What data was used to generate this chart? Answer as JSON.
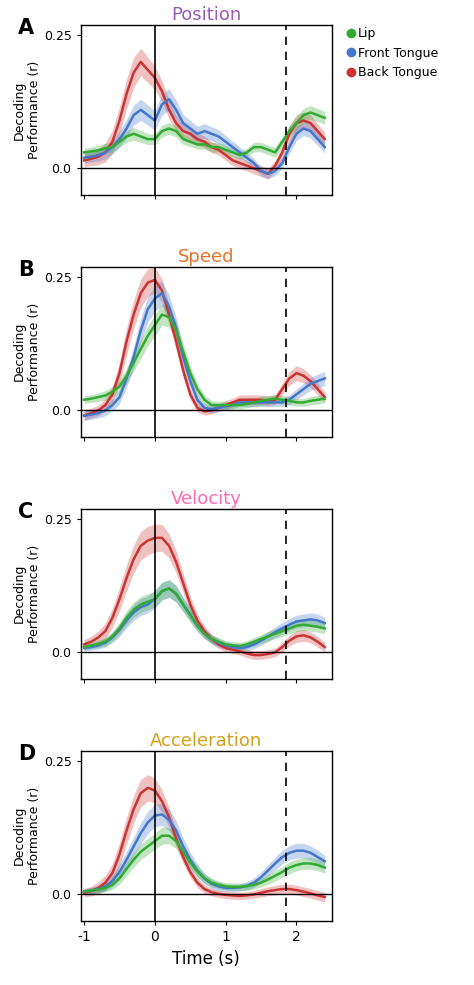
{
  "titles": [
    "Position",
    "Speed",
    "Velocity",
    "Acceleration"
  ],
  "title_colors": [
    "#9b59b6",
    "#e8722a",
    "#ff69b4",
    "#d4a017"
  ],
  "panel_labels": [
    "A",
    "B",
    "C",
    "D"
  ],
  "colors": {
    "lip": "#33aa33",
    "front_tongue": "#4477cc",
    "back_tongue": "#cc3333"
  },
  "legend_labels": [
    "Lip",
    "Front Tongue",
    "Back Tongue"
  ],
  "ylim": [
    -0.05,
    0.27
  ],
  "yticks": [
    0.0,
    0.25
  ],
  "xlim": [
    -1.05,
    2.5
  ],
  "xticks": [
    -1,
    0,
    1,
    2
  ],
  "xticklabels": [
    "-1",
    "0",
    "1",
    "2"
  ],
  "xlabel": "Time (s)",
  "ylabel": "Decoding\nPerformance (r)",
  "vline_solid": 0.0,
  "vline_dashed": 1.85,
  "hline": 0.0,
  "panels": {
    "A": {
      "t": [
        -1.0,
        -0.9,
        -0.8,
        -0.7,
        -0.6,
        -0.5,
        -0.4,
        -0.3,
        -0.2,
        -0.1,
        0.0,
        0.1,
        0.2,
        0.3,
        0.4,
        0.5,
        0.6,
        0.7,
        0.8,
        0.9,
        1.0,
        1.1,
        1.2,
        1.3,
        1.4,
        1.5,
        1.6,
        1.7,
        1.8,
        1.9,
        2.0,
        2.1,
        2.2,
        2.3,
        2.4
      ],
      "lip_mean": [
        0.03,
        0.032,
        0.034,
        0.038,
        0.04,
        0.05,
        0.06,
        0.065,
        0.06,
        0.055,
        0.055,
        0.07,
        0.075,
        0.07,
        0.055,
        0.05,
        0.045,
        0.045,
        0.04,
        0.04,
        0.035,
        0.03,
        0.025,
        0.03,
        0.04,
        0.04,
        0.035,
        0.03,
        0.05,
        0.07,
        0.085,
        0.1,
        0.105,
        0.1,
        0.095
      ],
      "lip_sem": [
        0.008,
        0.008,
        0.009,
        0.009,
        0.01,
        0.01,
        0.011,
        0.012,
        0.011,
        0.01,
        0.01,
        0.011,
        0.011,
        0.011,
        0.01,
        0.009,
        0.009,
        0.009,
        0.009,
        0.009,
        0.008,
        0.008,
        0.008,
        0.008,
        0.009,
        0.009,
        0.009,
        0.009,
        0.01,
        0.011,
        0.012,
        0.013,
        0.013,
        0.012,
        0.012
      ],
      "front_mean": [
        0.02,
        0.022,
        0.025,
        0.03,
        0.04,
        0.055,
        0.075,
        0.1,
        0.11,
        0.1,
        0.09,
        0.12,
        0.13,
        0.11,
        0.085,
        0.075,
        0.065,
        0.07,
        0.065,
        0.06,
        0.05,
        0.04,
        0.03,
        0.02,
        0.01,
        -0.005,
        -0.01,
        -0.005,
        0.01,
        0.04,
        0.065,
        0.075,
        0.07,
        0.055,
        0.04
      ],
      "front_sem": [
        0.01,
        0.01,
        0.011,
        0.012,
        0.013,
        0.015,
        0.017,
        0.019,
        0.02,
        0.019,
        0.018,
        0.02,
        0.02,
        0.018,
        0.016,
        0.015,
        0.014,
        0.014,
        0.013,
        0.013,
        0.012,
        0.011,
        0.01,
        0.009,
        0.009,
        0.009,
        0.009,
        0.009,
        0.01,
        0.012,
        0.013,
        0.013,
        0.013,
        0.012,
        0.011
      ],
      "back_mean": [
        0.015,
        0.018,
        0.022,
        0.03,
        0.05,
        0.09,
        0.14,
        0.18,
        0.2,
        0.185,
        0.17,
        0.145,
        0.11,
        0.085,
        0.07,
        0.065,
        0.055,
        0.05,
        0.04,
        0.035,
        0.025,
        0.015,
        0.01,
        0.005,
        0.0,
        -0.005,
        -0.01,
        0.005,
        0.03,
        0.065,
        0.085,
        0.09,
        0.085,
        0.07,
        0.055
      ],
      "back_sem": [
        0.012,
        0.013,
        0.015,
        0.018,
        0.022,
        0.026,
        0.028,
        0.028,
        0.026,
        0.024,
        0.022,
        0.02,
        0.017,
        0.015,
        0.013,
        0.012,
        0.011,
        0.011,
        0.01,
        0.01,
        0.01,
        0.01,
        0.01,
        0.01,
        0.01,
        0.01,
        0.01,
        0.01,
        0.012,
        0.015,
        0.016,
        0.016,
        0.015,
        0.014,
        0.013
      ]
    },
    "B": {
      "t": [
        -1.0,
        -0.9,
        -0.8,
        -0.7,
        -0.6,
        -0.5,
        -0.4,
        -0.3,
        -0.2,
        -0.1,
        0.0,
        0.1,
        0.2,
        0.3,
        0.4,
        0.5,
        0.6,
        0.7,
        0.8,
        0.9,
        1.0,
        1.1,
        1.2,
        1.3,
        1.4,
        1.5,
        1.6,
        1.7,
        1.8,
        1.9,
        2.0,
        2.1,
        2.2,
        2.3,
        2.4
      ],
      "lip_mean": [
        0.02,
        0.022,
        0.025,
        0.028,
        0.035,
        0.045,
        0.065,
        0.09,
        0.115,
        0.14,
        0.16,
        0.18,
        0.175,
        0.15,
        0.11,
        0.07,
        0.04,
        0.02,
        0.01,
        0.01,
        0.01,
        0.01,
        0.01,
        0.012,
        0.015,
        0.018,
        0.02,
        0.022,
        0.02,
        0.018,
        0.015,
        0.015,
        0.018,
        0.02,
        0.022
      ],
      "lip_sem": [
        0.007,
        0.007,
        0.008,
        0.009,
        0.01,
        0.012,
        0.014,
        0.016,
        0.018,
        0.019,
        0.02,
        0.02,
        0.019,
        0.018,
        0.016,
        0.013,
        0.011,
        0.009,
        0.008,
        0.007,
        0.007,
        0.007,
        0.007,
        0.007,
        0.007,
        0.008,
        0.008,
        0.008,
        0.008,
        0.008,
        0.007,
        0.007,
        0.008,
        0.008,
        0.008
      ],
      "front_mean": [
        -0.01,
        -0.008,
        -0.005,
        0.0,
        0.01,
        0.025,
        0.06,
        0.1,
        0.15,
        0.19,
        0.21,
        0.22,
        0.195,
        0.155,
        0.1,
        0.055,
        0.02,
        0.005,
        0.002,
        0.005,
        0.008,
        0.01,
        0.015,
        0.015,
        0.015,
        0.015,
        0.015,
        0.015,
        0.015,
        0.02,
        0.03,
        0.04,
        0.05,
        0.055,
        0.06
      ],
      "front_sem": [
        0.009,
        0.009,
        0.009,
        0.01,
        0.011,
        0.013,
        0.016,
        0.02,
        0.023,
        0.024,
        0.024,
        0.023,
        0.022,
        0.019,
        0.016,
        0.013,
        0.01,
        0.008,
        0.007,
        0.007,
        0.007,
        0.007,
        0.007,
        0.008,
        0.008,
        0.008,
        0.008,
        0.008,
        0.008,
        0.009,
        0.01,
        0.011,
        0.012,
        0.013,
        0.013
      ],
      "back_mean": [
        -0.01,
        -0.005,
        0.0,
        0.01,
        0.03,
        0.07,
        0.13,
        0.18,
        0.22,
        0.24,
        0.245,
        0.225,
        0.18,
        0.13,
        0.075,
        0.03,
        0.005,
        -0.002,
        0.0,
        0.005,
        0.01,
        0.015,
        0.02,
        0.02,
        0.02,
        0.02,
        0.018,
        0.02,
        0.04,
        0.06,
        0.07,
        0.065,
        0.055,
        0.04,
        0.025
      ],
      "back_sem": [
        0.009,
        0.009,
        0.01,
        0.012,
        0.016,
        0.02,
        0.025,
        0.027,
        0.027,
        0.026,
        0.024,
        0.022,
        0.019,
        0.016,
        0.013,
        0.01,
        0.008,
        0.007,
        0.007,
        0.007,
        0.008,
        0.008,
        0.009,
        0.009,
        0.009,
        0.009,
        0.009,
        0.009,
        0.011,
        0.013,
        0.014,
        0.013,
        0.012,
        0.011,
        0.01
      ]
    },
    "C": {
      "t": [
        -1.0,
        -0.9,
        -0.8,
        -0.7,
        -0.6,
        -0.5,
        -0.4,
        -0.3,
        -0.2,
        -0.1,
        0.0,
        0.1,
        0.2,
        0.3,
        0.4,
        0.5,
        0.6,
        0.7,
        0.8,
        0.9,
        1.0,
        1.1,
        1.2,
        1.3,
        1.4,
        1.5,
        1.6,
        1.7,
        1.8,
        1.9,
        2.0,
        2.1,
        2.2,
        2.3,
        2.4
      ],
      "lip_mean": [
        0.01,
        0.013,
        0.016,
        0.02,
        0.03,
        0.045,
        0.065,
        0.08,
        0.09,
        0.095,
        0.1,
        0.115,
        0.12,
        0.11,
        0.09,
        0.07,
        0.05,
        0.035,
        0.025,
        0.02,
        0.015,
        0.013,
        0.012,
        0.015,
        0.02,
        0.025,
        0.03,
        0.035,
        0.04,
        0.045,
        0.05,
        0.052,
        0.05,
        0.048,
        0.045
      ],
      "lip_sem": [
        0.006,
        0.006,
        0.007,
        0.008,
        0.009,
        0.011,
        0.013,
        0.014,
        0.015,
        0.015,
        0.015,
        0.016,
        0.016,
        0.015,
        0.013,
        0.012,
        0.01,
        0.009,
        0.008,
        0.008,
        0.007,
        0.007,
        0.007,
        0.007,
        0.008,
        0.008,
        0.009,
        0.009,
        0.01,
        0.01,
        0.011,
        0.011,
        0.011,
        0.01,
        0.01
      ],
      "front_mean": [
        0.008,
        0.01,
        0.013,
        0.018,
        0.028,
        0.042,
        0.06,
        0.075,
        0.085,
        0.09,
        0.1,
        0.115,
        0.12,
        0.11,
        0.09,
        0.07,
        0.05,
        0.035,
        0.025,
        0.018,
        0.013,
        0.01,
        0.008,
        0.01,
        0.015,
        0.022,
        0.03,
        0.038,
        0.045,
        0.052,
        0.058,
        0.06,
        0.062,
        0.06,
        0.055
      ],
      "front_sem": [
        0.006,
        0.006,
        0.007,
        0.008,
        0.01,
        0.012,
        0.014,
        0.015,
        0.016,
        0.016,
        0.017,
        0.017,
        0.017,
        0.016,
        0.014,
        0.013,
        0.011,
        0.009,
        0.008,
        0.008,
        0.007,
        0.007,
        0.007,
        0.007,
        0.008,
        0.009,
        0.009,
        0.01,
        0.011,
        0.011,
        0.012,
        0.012,
        0.012,
        0.012,
        0.011
      ],
      "back_mean": [
        0.015,
        0.02,
        0.028,
        0.04,
        0.065,
        0.1,
        0.14,
        0.175,
        0.2,
        0.21,
        0.215,
        0.215,
        0.2,
        0.17,
        0.13,
        0.09,
        0.06,
        0.04,
        0.025,
        0.015,
        0.008,
        0.005,
        0.002,
        -0.002,
        -0.005,
        -0.005,
        -0.003,
        0.0,
        0.01,
        0.022,
        0.03,
        0.032,
        0.028,
        0.02,
        0.01
      ],
      "back_sem": [
        0.009,
        0.01,
        0.012,
        0.015,
        0.018,
        0.022,
        0.025,
        0.026,
        0.027,
        0.027,
        0.026,
        0.025,
        0.023,
        0.021,
        0.018,
        0.015,
        0.012,
        0.01,
        0.009,
        0.008,
        0.007,
        0.007,
        0.007,
        0.008,
        0.008,
        0.008,
        0.008,
        0.008,
        0.009,
        0.01,
        0.011,
        0.011,
        0.01,
        0.01,
        0.009
      ]
    },
    "D": {
      "t": [
        -1.0,
        -0.9,
        -0.8,
        -0.7,
        -0.6,
        -0.5,
        -0.4,
        -0.3,
        -0.2,
        -0.1,
        0.0,
        0.1,
        0.2,
        0.3,
        0.4,
        0.5,
        0.6,
        0.7,
        0.8,
        0.9,
        1.0,
        1.1,
        1.2,
        1.3,
        1.4,
        1.5,
        1.6,
        1.7,
        1.8,
        1.9,
        2.0,
        2.1,
        2.2,
        2.3,
        2.4
      ],
      "lip_mean": [
        0.005,
        0.007,
        0.009,
        0.012,
        0.018,
        0.03,
        0.048,
        0.065,
        0.08,
        0.09,
        0.1,
        0.11,
        0.11,
        0.1,
        0.08,
        0.06,
        0.043,
        0.03,
        0.022,
        0.018,
        0.015,
        0.014,
        0.014,
        0.015,
        0.018,
        0.022,
        0.028,
        0.035,
        0.042,
        0.05,
        0.055,
        0.058,
        0.058,
        0.055,
        0.05
      ],
      "lip_sem": [
        0.005,
        0.006,
        0.006,
        0.007,
        0.009,
        0.011,
        0.013,
        0.014,
        0.015,
        0.015,
        0.015,
        0.016,
        0.015,
        0.014,
        0.013,
        0.011,
        0.01,
        0.009,
        0.008,
        0.007,
        0.007,
        0.007,
        0.007,
        0.007,
        0.008,
        0.008,
        0.009,
        0.01,
        0.01,
        0.011,
        0.011,
        0.011,
        0.011,
        0.011,
        0.01
      ],
      "front_mean": [
        0.005,
        0.007,
        0.01,
        0.015,
        0.025,
        0.042,
        0.065,
        0.09,
        0.115,
        0.135,
        0.148,
        0.15,
        0.14,
        0.12,
        0.09,
        0.065,
        0.045,
        0.03,
        0.02,
        0.015,
        0.012,
        0.012,
        0.013,
        0.016,
        0.022,
        0.032,
        0.045,
        0.058,
        0.07,
        0.078,
        0.082,
        0.082,
        0.078,
        0.07,
        0.062
      ],
      "front_sem": [
        0.005,
        0.006,
        0.007,
        0.009,
        0.011,
        0.014,
        0.016,
        0.018,
        0.02,
        0.021,
        0.021,
        0.021,
        0.02,
        0.018,
        0.016,
        0.014,
        0.012,
        0.01,
        0.009,
        0.008,
        0.007,
        0.007,
        0.007,
        0.008,
        0.009,
        0.01,
        0.011,
        0.012,
        0.013,
        0.013,
        0.014,
        0.014,
        0.013,
        0.013,
        0.012
      ],
      "back_mean": [
        0.003,
        0.006,
        0.012,
        0.022,
        0.04,
        0.075,
        0.12,
        0.16,
        0.19,
        0.2,
        0.195,
        0.175,
        0.145,
        0.105,
        0.07,
        0.042,
        0.022,
        0.01,
        0.004,
        0.001,
        -0.001,
        -0.002,
        -0.003,
        -0.002,
        0.0,
        0.003,
        0.006,
        0.008,
        0.01,
        0.01,
        0.008,
        0.005,
        0.002,
        -0.002,
        -0.005
      ],
      "back_sem": [
        0.008,
        0.009,
        0.011,
        0.014,
        0.018,
        0.022,
        0.025,
        0.026,
        0.026,
        0.025,
        0.023,
        0.021,
        0.018,
        0.015,
        0.012,
        0.01,
        0.009,
        0.008,
        0.007,
        0.007,
        0.007,
        0.007,
        0.007,
        0.007,
        0.007,
        0.008,
        0.008,
        0.009,
        0.009,
        0.009,
        0.009,
        0.009,
        0.009,
        0.009,
        0.009
      ]
    }
  }
}
